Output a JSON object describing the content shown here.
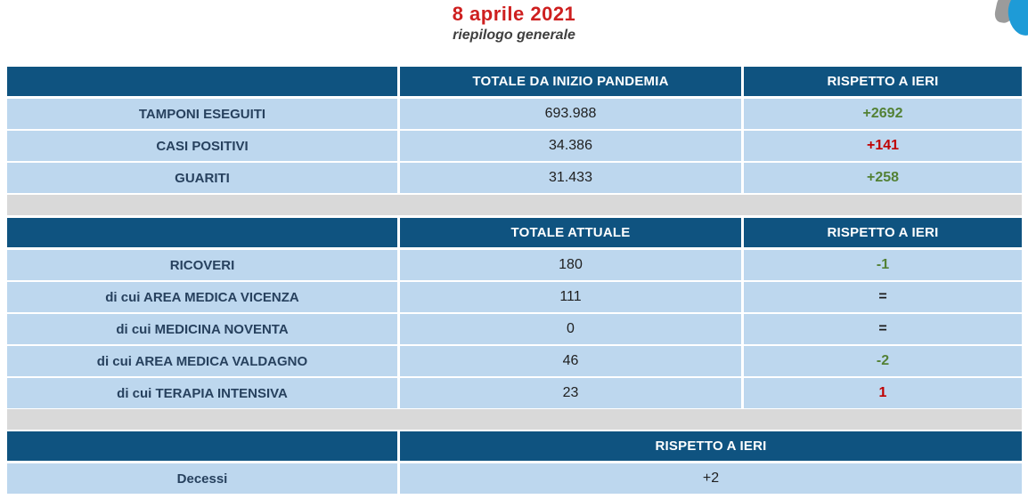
{
  "header": {
    "title": "8 aprile 2021",
    "subtitle": "riepilogo generale"
  },
  "logo": {
    "name": "region-globe-logo",
    "blue": "#1E9BD7",
    "gray": "#9B9B9B"
  },
  "colors": {
    "header_blue": "#0F5380",
    "row_blue": "#BDD7EE",
    "spacer_gray": "#D9D9D9",
    "title_red": "#CE1F1F",
    "label_navy": "#27415E",
    "delta_green": "#538135",
    "delta_red": "#C00000"
  },
  "tables": [
    {
      "id": "pandemic-totals",
      "columns": [
        "",
        "TOTALE DA INIZIO PANDEMIA",
        "RISPETTO A IERI"
      ],
      "rows": [
        {
          "label": "TAMPONI ESEGUITI",
          "total": "693.988",
          "delta": "+2692",
          "delta_color": "green"
        },
        {
          "label": "CASI POSITIVI",
          "total": "34.386",
          "delta": "+141",
          "delta_color": "red"
        },
        {
          "label": "GUARITI",
          "total": "31.433",
          "delta": "+258",
          "delta_color": "green"
        }
      ]
    },
    {
      "id": "current-totals",
      "columns": [
        "",
        "TOTALE ATTUALE",
        "RISPETTO A IERI"
      ],
      "rows": [
        {
          "label": "RICOVERI",
          "total": "180",
          "delta": "-1",
          "delta_color": "green"
        },
        {
          "label": "di cui AREA MEDICA VICENZA",
          "total": "111",
          "delta": "=",
          "delta_color": "dark"
        },
        {
          "label": "di cui MEDICINA NOVENTA",
          "total": "0",
          "delta": "=",
          "delta_color": "dark"
        },
        {
          "label": "di cui AREA MEDICA VALDAGNO",
          "total": "46",
          "delta": "-2",
          "delta_color": "green"
        },
        {
          "label": "di cui TERAPIA INTENSIVA",
          "total": "23",
          "delta": "1",
          "delta_color": "red"
        }
      ]
    },
    {
      "id": "deaths",
      "columns": [
        "",
        "RISPETTO A IERI"
      ],
      "rows": [
        {
          "label": "Decessi",
          "delta": "+2",
          "delta_color": "plain"
        }
      ]
    }
  ]
}
